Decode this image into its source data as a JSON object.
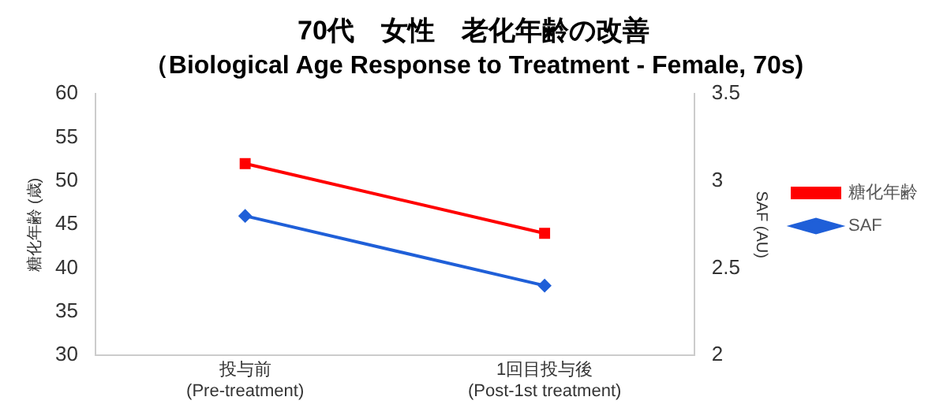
{
  "chart_data": {
    "type": "line",
    "title": "70代　女性　老化年齢の改善",
    "subtitle": "（Biological Age Response to Treatment - Female, 70s)",
    "categories": [
      "投与前\n(Pre-treatment)",
      "1回目投与後\n(Post-1st treatment)"
    ],
    "ylabel": "糖化年齢 (歳)",
    "y2label": "SAF (AU)",
    "series": [
      {
        "name": "糖化年齢",
        "color": "#ff0000",
        "values": [
          52,
          44
        ],
        "marker": "square"
      },
      {
        "name": "SAF",
        "color": "#1f5fd8",
        "values": [
          2.8,
          2.4
        ],
        "axis": "y2",
        "marker": "diamond"
      }
    ],
    "ylim": [
      30,
      60
    ],
    "yticks": [
      30,
      35,
      40,
      45,
      50,
      55,
      60
    ],
    "y2lim": [
      2,
      3.5
    ],
    "y2ticks": [
      2,
      2.5,
      3,
      3.5
    ],
    "grid": false,
    "legend": "right"
  }
}
